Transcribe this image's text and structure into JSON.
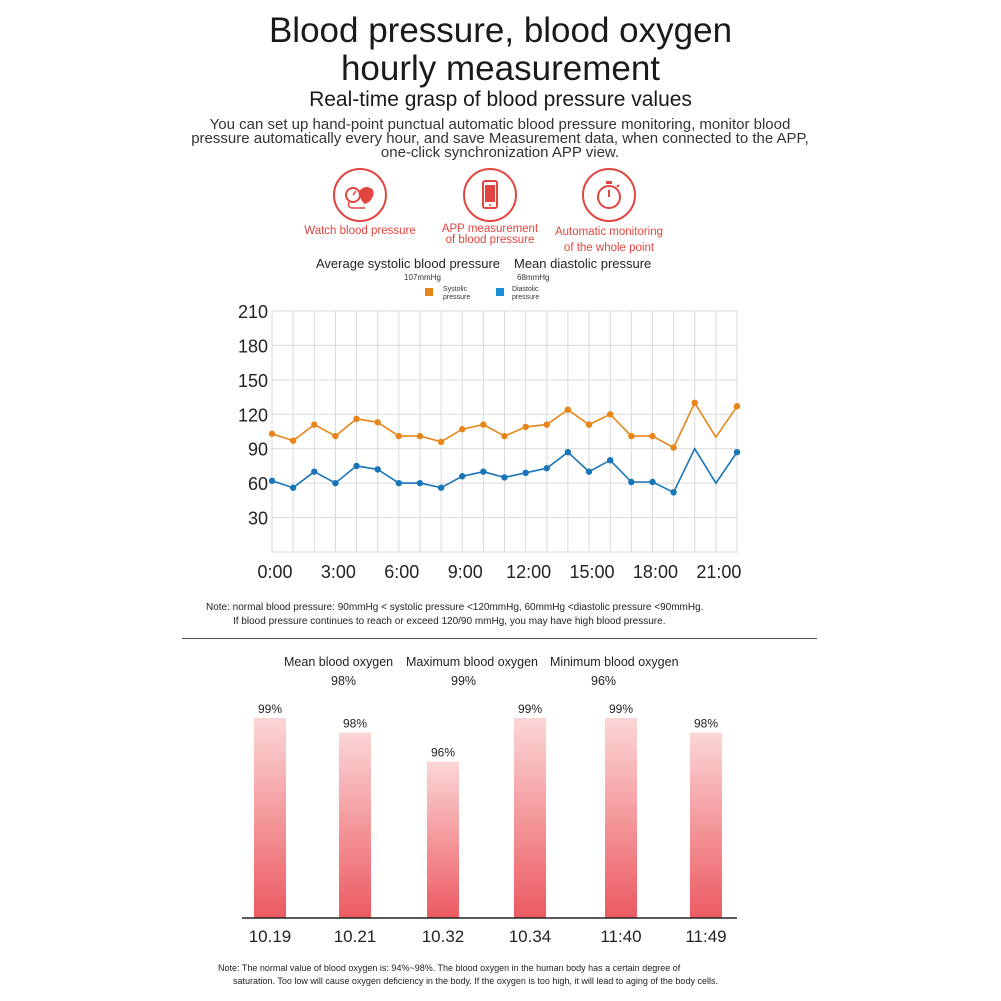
{
  "header": {
    "title_line1": "Blood pressure, blood oxygen",
    "title_line2": "hourly measurement",
    "subtitle": "Real-time grasp of blood pressure values",
    "description": "You can set up hand-point punctual automatic blood pressure monitoring, monitor blood pressure automatically every hour, and save Measurement data, when connected to the APP, one-click synchronization APP view."
  },
  "features": [
    {
      "icon": "blood-pressure-cuff-icon",
      "label_line1": "Watch blood pressure",
      "label_line2": ""
    },
    {
      "icon": "phone-icon",
      "label_line1": "APP measurement",
      "label_line2": "of blood pressure"
    },
    {
      "icon": "stopwatch-icon",
      "label_line1": "Automatic monitoring",
      "label_line2": "of the whole point"
    }
  ],
  "bp_summary": {
    "systolic_label": "Average systolic blood pressure",
    "systolic_value": "107mmHg",
    "diastolic_label": "Mean diastolic pressure",
    "diastolic_value": "68mmHg"
  },
  "colors": {
    "systolic": "#e8851a",
    "diastolic": "#1a74b8",
    "accent": "#e0453f",
    "bar_top": "#fbd6d6",
    "bar_bottom": "#ec5a62"
  },
  "chart_data": [
    {
      "type": "line",
      "x": [
        "0:00",
        "1:00",
        "2:00",
        "3:00",
        "4:00",
        "5:00",
        "6:00",
        "7:00",
        "8:00",
        "8:30",
        "9:30",
        "10:30",
        "11:30",
        "12:30",
        "13:30",
        "14:30",
        "15:30",
        "16:30",
        "17:30",
        "18:30",
        "19:30",
        "20:30",
        "21:30"
      ],
      "xticks": [
        "0:00",
        "3:00",
        "6:00",
        "9:00",
        "12:00",
        "15:00",
        "18:00",
        "21:00"
      ],
      "yticks": [
        30,
        60,
        90,
        120,
        150,
        180,
        210
      ],
      "ylim": [
        0,
        210
      ],
      "series": [
        {
          "name_line1": "Systolic",
          "name_line2": "pressure",
          "key": "systolic",
          "values": [
            103,
            97,
            111,
            101,
            116,
            113,
            101,
            101,
            96,
            107,
            111,
            101,
            109,
            111,
            124,
            111,
            120,
            101,
            101,
            91,
            130,
            100,
            127
          ],
          "markers": [
            1,
            1,
            1,
            1,
            1,
            1,
            1,
            1,
            1,
            1,
            1,
            1,
            1,
            1,
            1,
            1,
            1,
            1,
            1,
            1,
            1,
            0,
            1
          ]
        },
        {
          "name_line1": "Diastolic",
          "name_line2": "pressure",
          "key": "diastolic",
          "values": [
            62,
            56,
            70,
            60,
            75,
            72,
            60,
            60,
            56,
            66,
            70,
            65,
            69,
            73,
            87,
            70,
            80,
            61,
            61,
            52,
            90,
            60,
            87
          ],
          "markers": [
            1,
            1,
            1,
            1,
            1,
            1,
            1,
            1,
            1,
            1,
            1,
            1,
            1,
            1,
            1,
            1,
            1,
            1,
            1,
            1,
            0,
            0,
            1
          ]
        }
      ],
      "note_line1": "Note: normal blood pressure: 90mmHg < systolic pressure <120mmHg, 60mmHg <diastolic pressure <90mmHg.",
      "note_line2": "If blood pressure continues to reach or exceed 120/90 mmHg, you may have high blood pressure."
    },
    {
      "type": "bar",
      "categories": [
        "10.19",
        "10.21",
        "10.32",
        "10.34",
        "11:40",
        "11:49"
      ],
      "values": [
        99,
        98,
        96,
        99,
        99,
        98
      ],
      "value_labels": [
        "99%",
        "98%",
        "96%",
        "99%",
        "99%",
        "98%"
      ],
      "note_line1": "Note: The normal value of blood oxygen is: 94%~98%. The blood oxygen in the human body has a certain degree of",
      "note_line2": "saturation. Too low will cause oxygen deficiency in the body. If the oxygen is too high, it will lead to aging of the body cells."
    }
  ],
  "oxygen_stats": [
    {
      "label": "Mean blood oxygen",
      "value": "98%"
    },
    {
      "label": "Maximum blood oxygen",
      "value": "99%"
    },
    {
      "label": "Minimum blood oxygen",
      "value": "96%"
    }
  ]
}
